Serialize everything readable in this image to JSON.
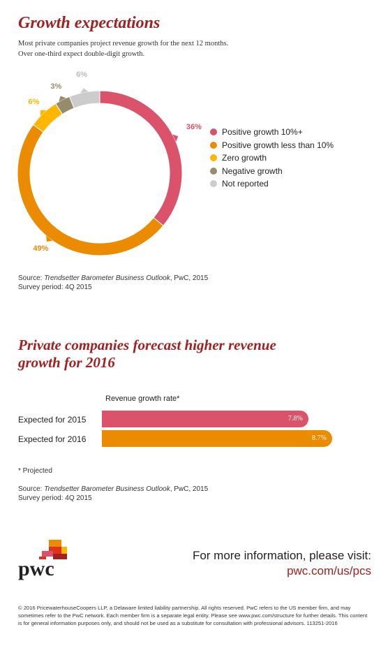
{
  "section1": {
    "title": "Growth expectations",
    "subtitle_line1": "Most private companies project revenue growth for the next 12 months.",
    "subtitle_line2": "Over one-third expect double-digit growth.",
    "source_prefix": "Source: ",
    "source_title": "Trendsetter Barometer Business Outlook",
    "source_suffix": ", PwC, 2015",
    "survey": "Survey period: 4Q 2015"
  },
  "section2": {
    "title_line1": "Private companies forecast higher revenue",
    "title_line2": "growth for 2016",
    "bar_title": "Revenue growth rate*",
    "note": "* Projected",
    "source_prefix": "Source: ",
    "source_title": "Trendsetter Barometer Business Outlook",
    "source_suffix": ", PwC, 2015",
    "survey": "Survey period: 4Q 2015"
  },
  "footer": {
    "more_info": "For more information, please visit:",
    "url": "pwc.com/us/pcs",
    "logo_text": "pwc",
    "legal": "© 2016 PricewaterhouseCoopers LLP, a Delaware limited liability partnership. All rights reserved. PwC refers to the US member firm, and may sometimes refer to the PwC network. Each member firm is a separate legal entity. Please see www.pwc.com/structure for further details. This content is for general information purposes only, and should not be used as a substitute for consultation with professional advisors. 113251-2016"
  },
  "chart_data": [
    {
      "type": "pie",
      "categories": [
        "Positive growth 10%+",
        "Positive growth less than 10%",
        "Zero growth",
        "Negative growth",
        "Not reported"
      ],
      "values": [
        36,
        49,
        6,
        3,
        6
      ],
      "labels": [
        "36%",
        "49%",
        "6%",
        "3%",
        "6%"
      ],
      "colors": [
        "#db536a",
        "#eb8c00",
        "#ffb600",
        "#968c6d",
        "#cccccc"
      ],
      "legend_position": "right"
    },
    {
      "type": "bar",
      "orientation": "horizontal",
      "title": "Revenue growth rate*",
      "categories": [
        "Expected for 2015",
        "Expected for 2016"
      ],
      "values": [
        7.8,
        8.7
      ],
      "labels": [
        "7.8%",
        "8.7%"
      ],
      "colors": [
        "#db536a",
        "#eb8c00"
      ]
    }
  ]
}
